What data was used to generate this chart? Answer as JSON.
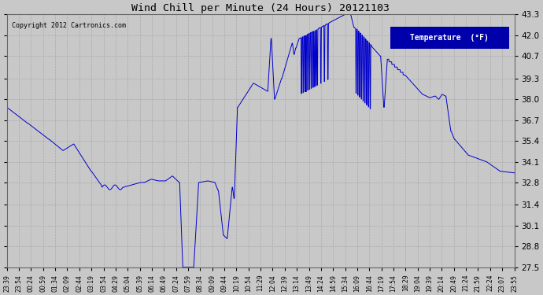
{
  "title": "Wind Chill per Minute (24 Hours) 20121103",
  "copyright": "Copyright 2012 Cartronics.com",
  "legend_label": "Temperature  (°F)",
  "line_color": "#0000cc",
  "background_color": "#c8c8c8",
  "plot_background": "#c8c8c8",
  "grid_color": "#aaaaaa",
  "ylim": [
    27.5,
    43.3
  ],
  "yticks": [
    27.5,
    28.8,
    30.1,
    31.4,
    32.8,
    34.1,
    35.4,
    36.7,
    38.0,
    39.3,
    40.7,
    42.0,
    43.3
  ],
  "xtick_labels": [
    "23:39",
    "23:54",
    "00:24",
    "00:59",
    "01:34",
    "02:09",
    "02:44",
    "03:19",
    "03:54",
    "04:29",
    "05:04",
    "05:39",
    "06:14",
    "06:49",
    "07:24",
    "07:59",
    "08:34",
    "09:09",
    "09:44",
    "10:19",
    "10:54",
    "11:29",
    "12:04",
    "12:39",
    "13:14",
    "13:49",
    "14:24",
    "14:59",
    "15:34",
    "16:09",
    "16:44",
    "17:19",
    "17:54",
    "18:29",
    "19:04",
    "19:39",
    "20:14",
    "20:49",
    "21:24",
    "21:59",
    "22:24",
    "23:07",
    "23:55"
  ]
}
